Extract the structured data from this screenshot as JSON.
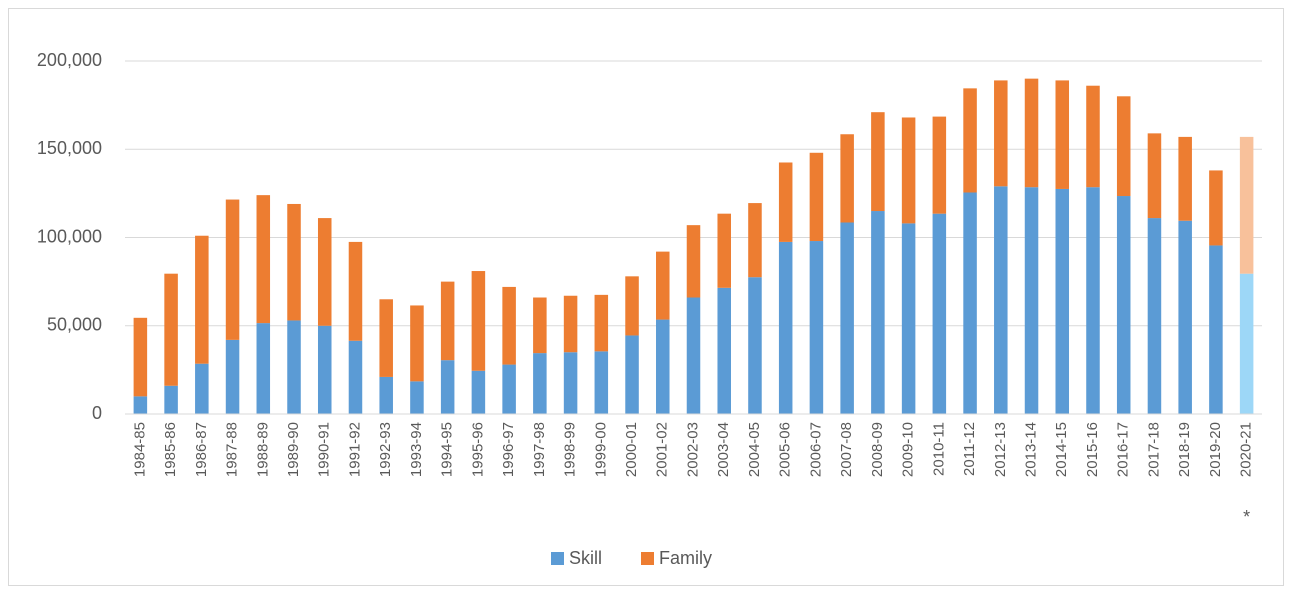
{
  "chart_data": {
    "type": "stacked_bar",
    "categories": [
      "1984-85",
      "1985-86",
      "1986-87",
      "1987-88",
      "1988-89",
      "1989-90",
      "1990-91",
      "1991-92",
      "1992-93",
      "1993-94",
      "1994-95",
      "1995-96",
      "1996-97",
      "1997-98",
      "1998-99",
      "1999-00",
      "2000-01",
      "2001-02",
      "2002-03",
      "2003-04",
      "2004-05",
      "2005-06",
      "2006-07",
      "2007-08",
      "2008-09",
      "2009-10",
      "2010-11",
      "2011-12",
      "2012-13",
      "2013-14",
      "2014-15",
      "2015-16",
      "2016-17",
      "2017-18",
      "2018-19",
      "2019-20",
      "2020-21"
    ],
    "series": [
      {
        "name": "Skill",
        "color": "#5b9bd5",
        "point_colors": {
          "2020-21": "#9dd7f7"
        },
        "values": [
          10000,
          16000,
          28500,
          42000,
          51500,
          53000,
          50000,
          41500,
          21000,
          18500,
          30500,
          24500,
          28000,
          34500,
          35000,
          35500,
          44500,
          53500,
          66000,
          71500,
          77500,
          97500,
          98000,
          108500,
          115000,
          108000,
          113500,
          125500,
          129000,
          128500,
          127500,
          128500,
          123500,
          111000,
          109500,
          95500,
          79500
        ]
      },
      {
        "name": "Family",
        "color": "#ed7d31",
        "point_colors": {
          "2020-21": "#f8c19b"
        },
        "values": [
          44500,
          63500,
          72500,
          79500,
          72500,
          66000,
          61000,
          56000,
          44000,
          43000,
          44500,
          56500,
          44000,
          31500,
          32000,
          32000,
          33500,
          38500,
          41000,
          42000,
          42000,
          45000,
          50000,
          50000,
          56000,
          60000,
          55000,
          59000,
          60000,
          61500,
          61500,
          57500,
          56500,
          48000,
          47500,
          42500,
          77500
        ]
      }
    ],
    "annotations": [
      {
        "text": "*",
        "category": "2020-21"
      }
    ],
    "ylim": [
      0,
      200000
    ],
    "yticks": [
      0,
      {
        "value": 50000,
        "label": "50,000"
      },
      {
        "value": 100000,
        "label": "100,000"
      },
      {
        "value": 150000,
        "label": "150,000"
      },
      {
        "value": 200000,
        "label": "200,000"
      }
    ],
    "grid": true,
    "legend": "bottom"
  }
}
